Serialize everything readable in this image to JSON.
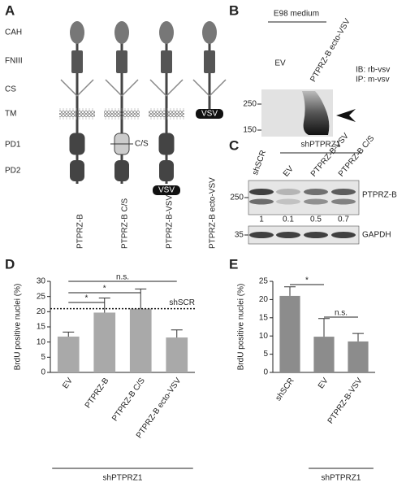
{
  "panels": {
    "a": "A",
    "b": "B",
    "c": "C",
    "d": "D",
    "e": "E"
  },
  "panel_a": {
    "domains": [
      "CAH",
      "FNIII",
      "CS",
      "TM",
      "PD1",
      "PD2"
    ],
    "constructs": [
      "PTPRZ-B",
      "PTPRZ-B C/S",
      "PTPRZ-B-VSV",
      "PTPRZ-B ecto-VSV"
    ],
    "mutation": "C/S",
    "tag": "VSV"
  },
  "panel_b": {
    "header": "E98 medium",
    "lanes": [
      "EV",
      "PTPRZ-B ecto-VSV"
    ],
    "markers": [
      "250",
      "150"
    ],
    "notes": [
      "IB: rb-vsv",
      "IP: m-vsv"
    ]
  },
  "panel_c": {
    "header": "shPTPRZ1",
    "lanes": [
      "shSCR",
      "EV",
      "PTPRZ-B-VSV",
      "PTPRZ-B C/S"
    ],
    "markers": [
      "250",
      "35"
    ],
    "bands": [
      "PTPRZ-B",
      "GAPDH"
    ],
    "quantification": [
      "1",
      "0.1",
      "0.5",
      "0.7"
    ]
  },
  "chart_data": [
    {
      "type": "bar",
      "ylabel": "BrdU positive nuclei (%)",
      "categories": [
        "EV",
        "PTPRZ-B",
        "PTPRZ-B C/S",
        "PTPRZ-B ecto-VSV"
      ],
      "values": [
        11.8,
        19.7,
        21,
        11.5
      ],
      "errors": [
        1.5,
        4.8,
        6.5,
        2.5
      ],
      "color": "#a9a9a9",
      "ylim": [
        0,
        30
      ],
      "yticks": [
        0,
        5,
        10,
        15,
        20,
        25,
        30
      ],
      "reference_line": {
        "label": "shSCR",
        "value": 21
      },
      "annotations": [
        {
          "label": "*",
          "from": "EV",
          "to": "PTPRZ-B"
        },
        {
          "label": "*",
          "from": "EV",
          "to": "PTPRZ-B C/S"
        },
        {
          "label": "n.s.",
          "from": "EV",
          "to": "PTPRZ-B ecto-VSV"
        }
      ],
      "group": {
        "label": "shPTPRZ1",
        "from": "EV",
        "to": "PTPRZ-B ecto-VSV"
      }
    },
    {
      "type": "bar",
      "ylabel": "BrdU positive nuclei (%)",
      "categories": [
        "shSCR",
        "EV",
        "PTPRZ-B-VSV"
      ],
      "values": [
        21,
        9.8,
        8.5
      ],
      "errors": [
        2.5,
        5,
        2.2
      ],
      "color": "#8c8c8c",
      "ylim": [
        0,
        25
      ],
      "yticks": [
        0,
        5,
        10,
        15,
        20,
        25
      ],
      "annotations": [
        {
          "label": "*",
          "from": "shSCR",
          "to": "EV"
        },
        {
          "label": "n.s.",
          "from": "EV",
          "to": "PTPRZ-B-VSV"
        }
      ],
      "group": {
        "label": "shPTPRZ1",
        "from": "EV",
        "to": "PTPRZ-B-VSV"
      }
    }
  ]
}
